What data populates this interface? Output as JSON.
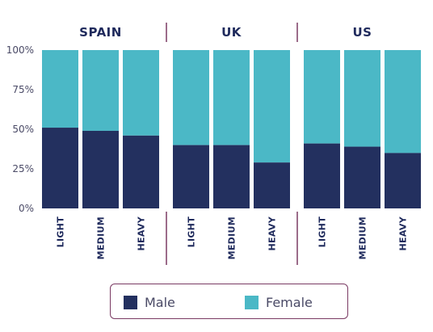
{
  "chart_data": {
    "type": "bar",
    "stacked": true,
    "groups": [
      {
        "name": "SPAIN",
        "categories": [
          "LIGHT",
          "MEDIUM",
          "HEAVY"
        ],
        "male": [
          51,
          49,
          46
        ],
        "female": [
          49,
          51,
          54
        ]
      },
      {
        "name": "UK",
        "categories": [
          "LIGHT",
          "MEDIUM",
          "HEAVY"
        ],
        "male": [
          40,
          40,
          29
        ],
        "female": [
          60,
          60,
          71
        ]
      },
      {
        "name": "US",
        "categories": [
          "LIGHT",
          "MEDIUM",
          "HEAVY"
        ],
        "male": [
          41,
          39,
          35
        ],
        "female": [
          59,
          61,
          65
        ]
      }
    ],
    "series": [
      {
        "name": "Male",
        "color": "#23305f"
      },
      {
        "name": "Female",
        "color": "#4bb8c6"
      }
    ],
    "yticks": [
      "0%",
      "25%",
      "50%",
      "75%",
      "100%"
    ],
    "ylim": [
      0,
      100
    ],
    "grid": false,
    "legend_position": "bottom"
  },
  "colors": {
    "separator": "#7a3a63",
    "text": "#1f2a5c",
    "tick": "#4a4a66"
  }
}
